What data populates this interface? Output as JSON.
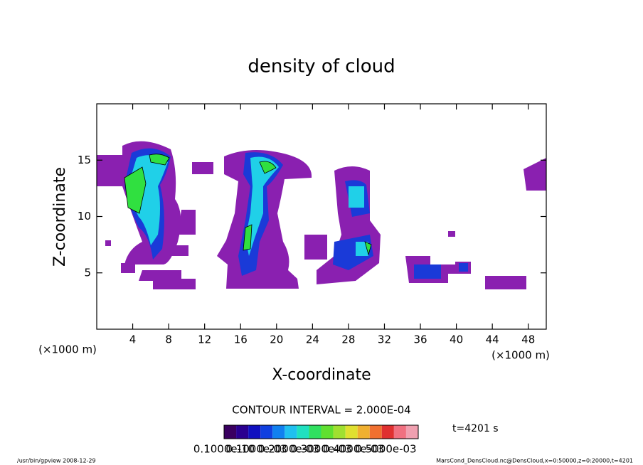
{
  "chart_data": {
    "type": "contour",
    "title": "density of cloud",
    "xlabel": "X-coordinate",
    "ylabel": "Z-coordinate",
    "x_unit": "(×1000 m)",
    "y_unit": "(×1000 m)",
    "xlim": [
      0,
      50
    ],
    "ylim": [
      0,
      20
    ],
    "xticks": [
      4,
      8,
      12,
      16,
      20,
      24,
      28,
      32,
      36,
      40,
      44,
      48
    ],
    "yticks": [
      5,
      10,
      15
    ],
    "contour_interval": "CONTOUR INTERVAL = 2.000E-04",
    "time": "t=4201 s",
    "colorbar": {
      "colors": [
        "#3a0060",
        "#2a0090",
        "#1010c0",
        "#1040e0",
        "#1080f0",
        "#20c0f0",
        "#20e0c0",
        "#30e060",
        "#60e030",
        "#a0e030",
        "#e0e030",
        "#f0b030",
        "#f07030",
        "#e03030",
        "#f07080",
        "#f0a0b0"
      ],
      "labels": [
        "0.1000e-10",
        "0.1000e-03",
        "0.2000e-03",
        "0.3000e-03",
        "0.4000e-03",
        "0.5000e-03"
      ]
    },
    "footer_left": "/usr/bin/gpview  2008-12-29",
    "footer_right": "MarsCond_DensCloud.nc@DensCloud,x=0:50000,z=0:20000,t=4201"
  }
}
